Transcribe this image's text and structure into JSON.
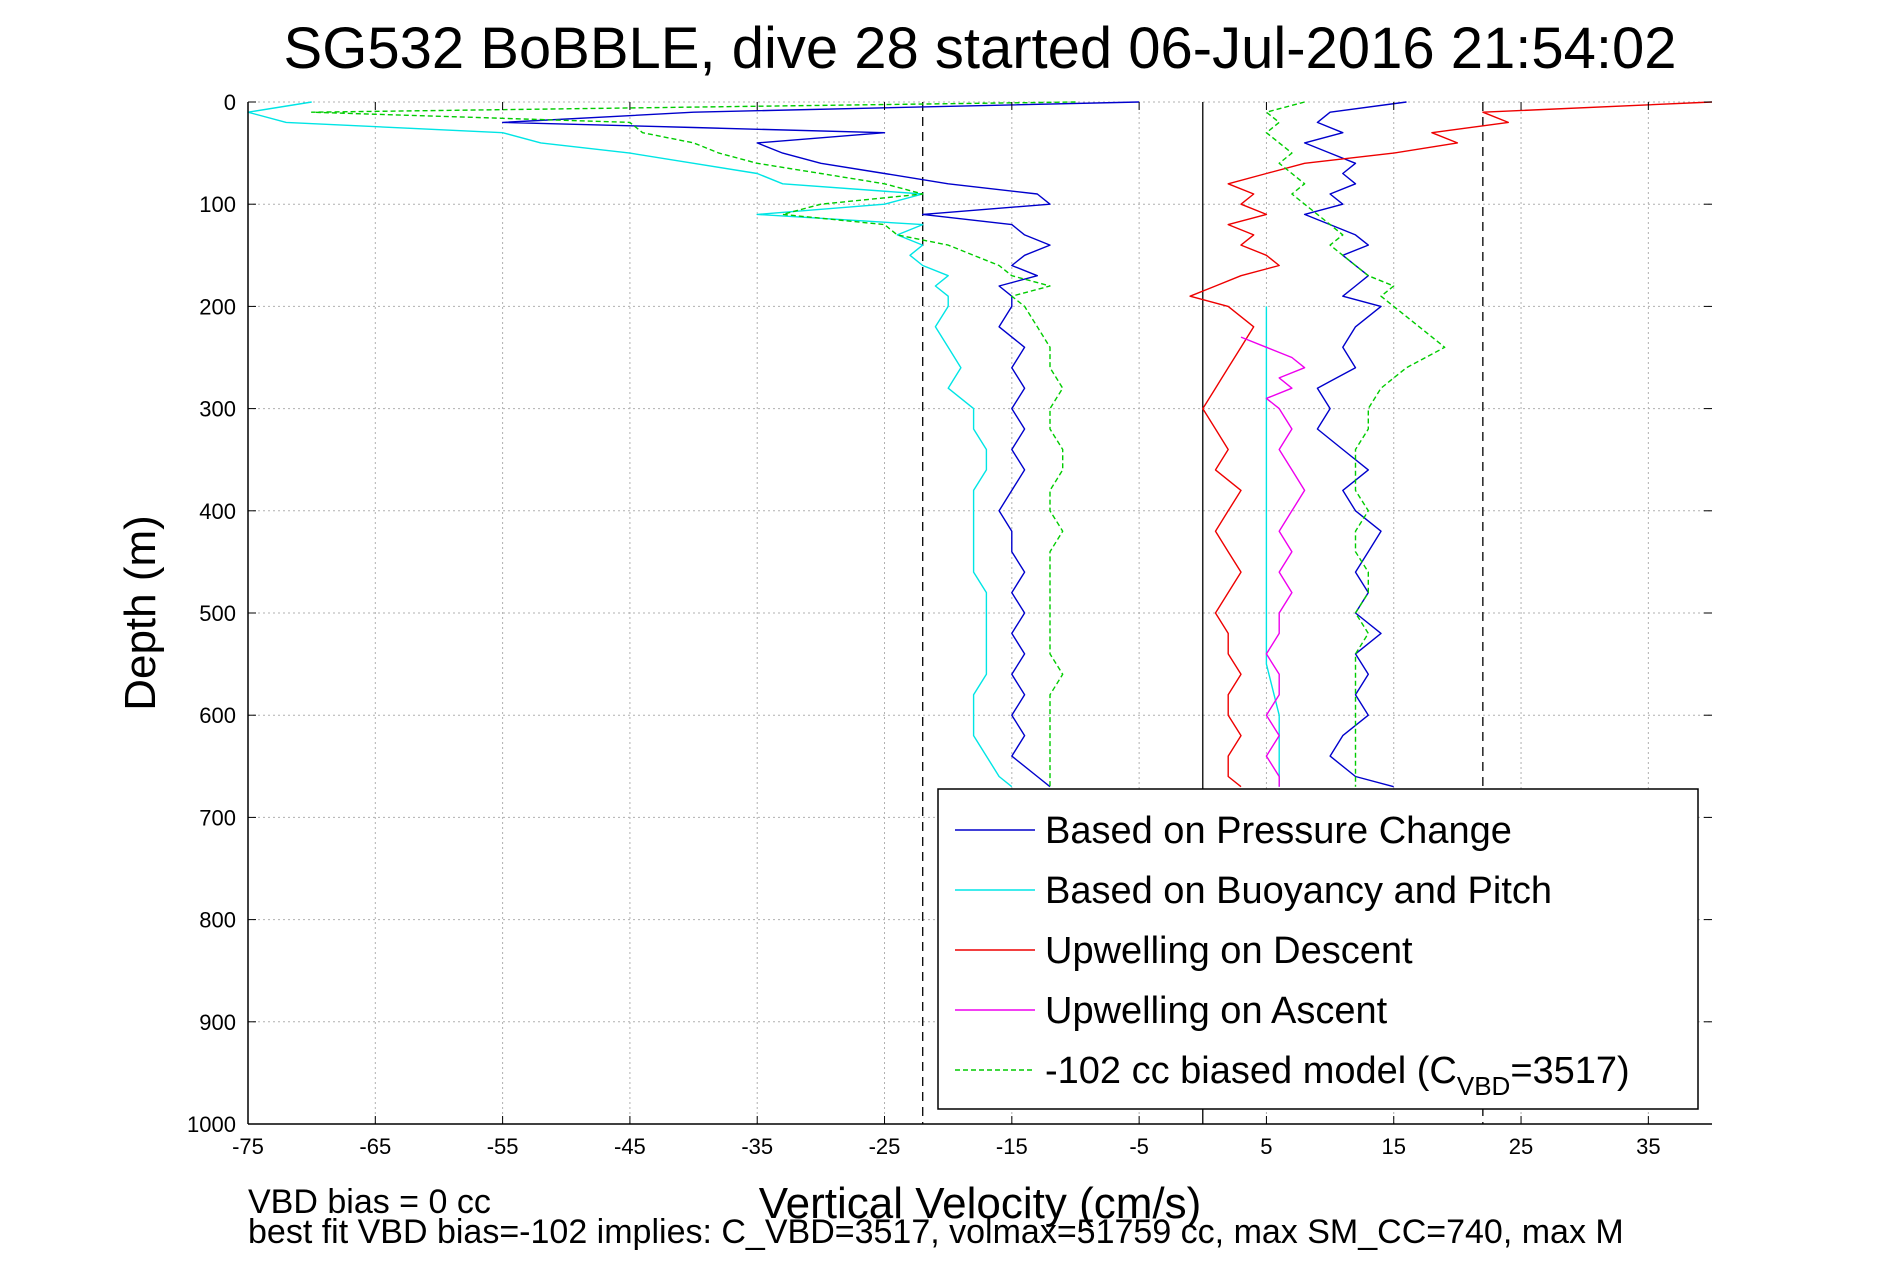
{
  "chart_data": {
    "type": "line",
    "title": "SG532 BoBBLE, dive 28 started 06-Jul-2016 21:54:02",
    "xlabel": "Vertical Velocity (cm/s)",
    "ylabel": "Depth (m)",
    "xlim": [
      -75,
      40
    ],
    "ylim": [
      0,
      1000
    ],
    "y_reversed": true,
    "grid": true,
    "x_ticks": [
      -75,
      -65,
      -55,
      -45,
      -35,
      -25,
      -15,
      -5,
      5,
      15,
      25,
      35
    ],
    "y_ticks": [
      0,
      100,
      200,
      300,
      400,
      500,
      600,
      700,
      800,
      900,
      1000
    ],
    "reference_lines": [
      {
        "x": -22,
        "style": "dashed",
        "color": "#000000"
      },
      {
        "x": 0,
        "style": "solid",
        "color": "#000000"
      },
      {
        "x": 22,
        "style": "dashed",
        "color": "#000000"
      }
    ],
    "legend_position": "lower-right",
    "series": [
      {
        "name": "Based on Pressure Change",
        "color": "#0000cc",
        "style": "solid",
        "segments": [
          {
            "depth": [
              0,
              10,
              20,
              25,
              30,
              40,
              50,
              60,
              70,
              80,
              90,
              100,
              110,
              120,
              130,
              140,
              150,
              160,
              170,
              180,
              190,
              200,
              220,
              240,
              260,
              280,
              300,
              320,
              340,
              360,
              380,
              400,
              420,
              440,
              460,
              480,
              500,
              520,
              540,
              560,
              580,
              600,
              620,
              640,
              660,
              670
            ],
            "x": [
              -5,
              -40,
              -55,
              -40,
              -25,
              -35,
              -33,
              -30,
              -25,
              -20,
              -13,
              -12,
              -22,
              -15,
              -14,
              -12,
              -14,
              -15,
              -13,
              -16,
              -15,
              -15,
              -16,
              -14,
              -15,
              -14,
              -15,
              -14,
              -15,
              -14,
              -15,
              -16,
              -15,
              -15,
              -14,
              -15,
              -14,
              -15,
              -14,
              -15,
              -14,
              -15,
              -14,
              -15,
              -13,
              -12
            ]
          },
          {
            "depth": [
              0,
              10,
              20,
              30,
              40,
              50,
              60,
              70,
              80,
              90,
              100,
              110,
              120,
              130,
              140,
              150,
              160,
              170,
              180,
              190,
              200,
              220,
              240,
              260,
              280,
              300,
              320,
              340,
              360,
              380,
              400,
              420,
              440,
              460,
              480,
              500,
              520,
              540,
              560,
              580,
              600,
              620,
              640,
              660,
              670
            ],
            "x": [
              16,
              10,
              9,
              11,
              8,
              10,
              12,
              11,
              12,
              10,
              11,
              8,
              10,
              12,
              13,
              11,
              12,
              13,
              12,
              11,
              14,
              12,
              11,
              12,
              9,
              10,
              9,
              11,
              13,
              11,
              12,
              14,
              13,
              12,
              13,
              12,
              14,
              12,
              13,
              12,
              13,
              11,
              10,
              12,
              15
            ]
          }
        ]
      },
      {
        "name": "Based on Buoyancy and Pitch",
        "color": "#00e5e5",
        "style": "solid",
        "segments": [
          {
            "depth": [
              0,
              10,
              20,
              30,
              40,
              50,
              60,
              70,
              80,
              90,
              100,
              110,
              120,
              130,
              140,
              150,
              160,
              170,
              180,
              190,
              200,
              220,
              240,
              260,
              280,
              300,
              320,
              340,
              360,
              380,
              400,
              420,
              440,
              460,
              480,
              500,
              520,
              540,
              560,
              580,
              600,
              620,
              640,
              660,
              670
            ],
            "x": [
              -70,
              -75,
              -72,
              -55,
              -52,
              -45,
              -40,
              -35,
              -33,
              -22,
              -25,
              -35,
              -22,
              -24,
              -22,
              -23,
              -22,
              -20,
              -21,
              -20,
              -20,
              -21,
              -20,
              -19,
              -20,
              -18,
              -18,
              -17,
              -17,
              -18,
              -18,
              -18,
              -18,
              -18,
              -17,
              -17,
              -17,
              -17,
              -17,
              -18,
              -18,
              -18,
              -17,
              -16,
              -15
            ]
          },
          {
            "depth": [
              200,
              250,
              300,
              350,
              400,
              450,
              500,
              550,
              600,
              650,
              670
            ],
            "x": [
              5,
              5,
              5,
              5,
              5,
              5,
              5,
              5,
              6,
              6,
              6
            ]
          }
        ]
      },
      {
        "name": "Upwelling on Descent",
        "color": "#ee0000",
        "style": "solid",
        "segments": [
          {
            "depth": [
              0,
              10,
              20,
              30,
              40,
              50,
              60,
              70,
              80,
              90,
              100,
              110,
              120,
              130,
              140,
              150,
              160,
              170,
              180,
              190,
              200,
              220,
              240,
              260,
              280,
              300,
              320,
              340,
              360,
              380,
              400,
              420,
              440,
              460,
              480,
              500,
              520,
              540,
              560,
              580,
              600,
              620,
              640,
              660,
              670
            ],
            "x": [
              40,
              22,
              24,
              18,
              20,
              15,
              8,
              5,
              2,
              4,
              3,
              5,
              2,
              4,
              3,
              5,
              6,
              3,
              1,
              -1,
              2,
              4,
              3,
              2,
              1,
              0,
              1,
              2,
              1,
              3,
              2,
              1,
              2,
              3,
              2,
              1,
              2,
              2,
              3,
              2,
              2,
              3,
              2,
              2,
              3
            ]
          }
        ]
      },
      {
        "name": "Upwelling on Ascent",
        "color": "#ee00ee",
        "style": "solid",
        "segments": [
          {
            "depth": [
              230,
              240,
              250,
              260,
              270,
              280,
              290,
              300,
              320,
              340,
              360,
              380,
              400,
              420,
              440,
              460,
              480,
              500,
              520,
              540,
              560,
              580,
              600,
              620,
              640,
              660,
              670
            ],
            "x": [
              3,
              5,
              7,
              8,
              6,
              7,
              5,
              6,
              7,
              6,
              7,
              8,
              7,
              6,
              7,
              6,
              7,
              6,
              6,
              5,
              6,
              6,
              5,
              6,
              5,
              6,
              6
            ]
          }
        ]
      },
      {
        "name": "-102 cc biased model (C_VBD=3517)",
        "color": "#00cc00",
        "style": "dashed",
        "segments": [
          {
            "depth": [
              0,
              10,
              20,
              30,
              40,
              50,
              60,
              70,
              80,
              90,
              100,
              110,
              120,
              130,
              140,
              150,
              160,
              170,
              180,
              190,
              200,
              220,
              240,
              260,
              280,
              300,
              320,
              340,
              360,
              380,
              400,
              420,
              440,
              460,
              480,
              500,
              520,
              540,
              560,
              580,
              600,
              620,
              640,
              660,
              670
            ],
            "x": [
              -10,
              -70,
              -45,
              -44,
              -40,
              -38,
              -35,
              -30,
              -25,
              -22,
              -30,
              -33,
              -25,
              -24,
              -20,
              -18,
              -16,
              -15,
              -12,
              -15,
              -14,
              -13,
              -12,
              -12,
              -11,
              -12,
              -12,
              -11,
              -11,
              -12,
              -12,
              -11,
              -12,
              -12,
              -12,
              -12,
              -12,
              -12,
              -11,
              -12,
              -12,
              -12,
              -12,
              -12,
              -12
            ]
          },
          {
            "depth": [
              0,
              10,
              20,
              30,
              40,
              50,
              60,
              70,
              80,
              90,
              100,
              110,
              120,
              130,
              140,
              150,
              160,
              170,
              180,
              190,
              200,
              220,
              240,
              260,
              280,
              300,
              320,
              340,
              360,
              380,
              400,
              420,
              440,
              460,
              480,
              500,
              520,
              540,
              560,
              580,
              600,
              620,
              640,
              660,
              670
            ],
            "x": [
              8,
              5,
              6,
              5,
              6,
              7,
              6,
              7,
              8,
              7,
              8,
              9,
              10,
              11,
              10,
              11,
              12,
              13,
              15,
              14,
              15,
              17,
              19,
              16,
              14,
              13,
              13,
              12,
              12,
              12,
              13,
              12,
              12,
              13,
              13,
              12,
              13,
              12,
              12,
              12,
              12,
              12,
              12,
              12,
              12
            ]
          }
        ]
      }
    ]
  },
  "legend": {
    "entries": [
      {
        "label": "Based on Pressure Change",
        "color": "#0000cc",
        "dashed": false
      },
      {
        "label": "Based on Buoyancy and Pitch",
        "color": "#00e5e5",
        "dashed": false
      },
      {
        "label": "Upwelling on Descent",
        "color": "#ee0000",
        "dashed": false
      },
      {
        "label": "Upwelling on Ascent",
        "color": "#ee00ee",
        "dashed": false
      },
      {
        "label_main": "-102 cc biased model (C",
        "label_sub": "VBD",
        "label_tail": "=3517)",
        "color": "#00cc00",
        "dashed": true
      }
    ]
  },
  "footer": {
    "line1": "VBD bias = 0 cc",
    "line2": "best fit VBD bias=-102 implies: C_VBD=3517, volmax=51759 cc, max SM_CC=740, max M"
  }
}
